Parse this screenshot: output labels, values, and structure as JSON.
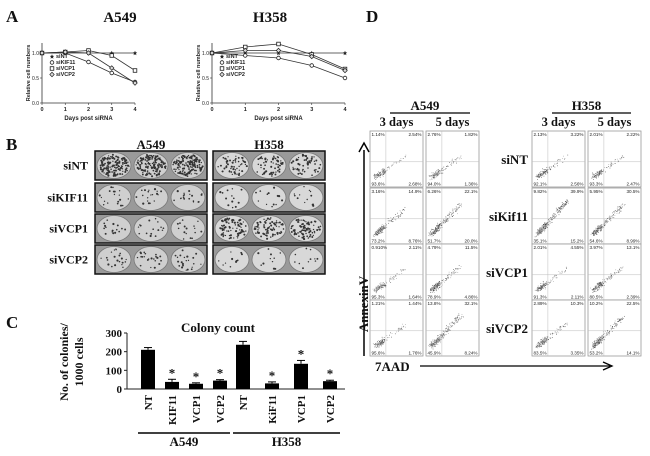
{
  "panels": {
    "A": "A",
    "B": "B",
    "C": "C",
    "D": "D"
  },
  "chart_data": [
    {
      "type": "line",
      "title": "A549",
      "xlabel": "Days post siRNA",
      "ylabel": "Relative cell numbers",
      "x": [
        0,
        1,
        2,
        3,
        4
      ],
      "xlim": [
        0,
        4
      ],
      "ylim": [
        0,
        1.2
      ],
      "yticks": [
        "0.0",
        "0.5",
        "1.0"
      ],
      "xticks": [
        "0",
        "1",
        "2",
        "3",
        "4"
      ],
      "legend": "top-left",
      "series": [
        {
          "name": "siNT",
          "marker": "star",
          "values": [
            1,
            1,
            1,
            1,
            1
          ]
        },
        {
          "name": "siKIF11",
          "marker": "circle",
          "values": [
            1,
            1,
            0.82,
            0.6,
            0.42
          ]
        },
        {
          "name": "siVCP1",
          "marker": "square",
          "values": [
            1,
            1.02,
            1.05,
            0.95,
            0.65
          ]
        },
        {
          "name": "siVCP2",
          "marker": "diamond",
          "values": [
            1,
            1.02,
            1.0,
            0.7,
            0.4
          ]
        }
      ]
    },
    {
      "type": "line",
      "title": "H358",
      "xlabel": "Days post siRNA",
      "ylabel": "Relative cell numbers",
      "x": [
        0,
        1,
        2,
        3,
        4
      ],
      "xlim": [
        0,
        4
      ],
      "ylim": [
        0,
        1.2
      ],
      "yticks": [
        "0.0",
        "0.5",
        "1.0"
      ],
      "xticks": [
        "0",
        "1",
        "2",
        "3",
        "4"
      ],
      "legend": "top-left",
      "series": [
        {
          "name": "siNT",
          "marker": "star",
          "values": [
            1,
            1,
            1,
            1,
            1
          ]
        },
        {
          "name": "siKIF11",
          "marker": "circle",
          "values": [
            1,
            0.95,
            0.9,
            0.75,
            0.5
          ]
        },
        {
          "name": "siVCP1",
          "marker": "square",
          "values": [
            1,
            1.12,
            1.18,
            0.97,
            0.68
          ]
        },
        {
          "name": "siVCP2",
          "marker": "diamond",
          "values": [
            1,
            1.05,
            1.05,
            0.93,
            0.65
          ]
        }
      ]
    },
    {
      "type": "bar",
      "title": "Colony count",
      "ylabel": "No. of colonies/ 1000 cells",
      "ylim": [
        0,
        300
      ],
      "yticks": [
        "0",
        "100",
        "200",
        "300"
      ],
      "categories": [
        "NT",
        "KIF11",
        "VCP1",
        "VCP2",
        "NT",
        "KiF11",
        "VCP1",
        "VCP2"
      ],
      "groups": [
        {
          "label": "A549",
          "count": 4
        },
        {
          "label": "H358",
          "count": 4
        }
      ],
      "values": [
        210,
        38,
        28,
        45,
        237,
        30,
        135,
        42
      ],
      "errors": [
        12,
        14,
        5,
        5,
        18,
        8,
        18,
        5
      ],
      "significance": [
        "",
        "*",
        "*",
        "*",
        "",
        "*",
        "*",
        "*"
      ]
    }
  ],
  "panel_b": {
    "columns": [
      "A549",
      "H358"
    ],
    "rows": [
      "siNT",
      "siKIF11",
      "siVCP1",
      "siVCP2"
    ],
    "density": [
      [
        0.95,
        0.35
      ],
      [
        0.12,
        0.08
      ],
      [
        0.1,
        0.5
      ],
      [
        0.14,
        0.07
      ]
    ]
  },
  "panel_d": {
    "cell_lines": [
      "A549",
      "H358"
    ],
    "timepoints": [
      "3 days",
      "5 days"
    ],
    "rows": [
      "siNT",
      "siKif11",
      "siVCP1",
      "siVCP2"
    ],
    "y_axis": "AnnexinV",
    "x_axis": "7AAD",
    "quadrants": {
      "A549": [
        [
          [
            "1.14%",
            "2.54%",
            "93.6%",
            "2.68%"
          ],
          [
            "2.76%",
            "1.82%",
            "94.0%",
            "1.36%"
          ]
        ],
        [
          [
            "3.16%",
            "14.9%",
            "73.2%",
            "8.76%"
          ],
          [
            "6.26%",
            "22.1%",
            "51.7%",
            "20.0%"
          ]
        ],
        [
          [
            "0.910%",
            "2.11%",
            "95.3%",
            "1.64%"
          ],
          [
            "4.79%",
            "11.5%",
            "78.9%",
            "4.86%"
          ]
        ],
        [
          [
            "1.21%",
            "1.44%",
            "95.6%",
            "1.76%"
          ],
          [
            "13.8%",
            "32.1%",
            "45.9%",
            "8.24%"
          ]
        ]
      ],
      "H358": [
        [
          [
            "2.13%",
            "3.22%",
            "92.1%",
            "2.56%"
          ],
          [
            "2.01%",
            "2.22%",
            "93.3%",
            "2.47%"
          ]
        ],
        [
          [
            "9.82%",
            "39.9%",
            "35.1%",
            "15.2%"
          ],
          [
            "5.95%",
            "30.5%",
            "54.6%",
            "8.99%"
          ]
        ],
        [
          [
            "2.01%",
            "4.55%",
            "91.3%",
            "2.11%"
          ],
          [
            "3.97%",
            "13.1%",
            "80.5%",
            "2.39%"
          ]
        ],
        [
          [
            "2.89%",
            "10.3%",
            "83.5%",
            "3.35%"
          ],
          [
            "10.2%",
            "22.5%",
            "53.2%",
            "14.1%"
          ]
        ]
      ]
    }
  }
}
